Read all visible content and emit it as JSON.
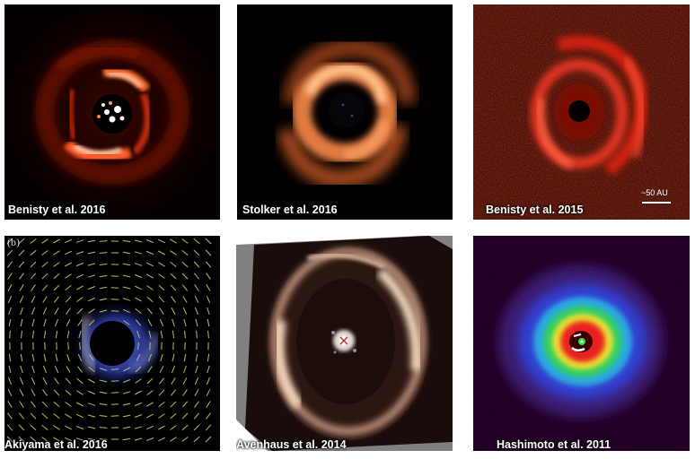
{
  "panels": [
    {
      "caption": "Benisty et al. 2016"
    },
    {
      "caption": "Stolker et al. 2016"
    },
    {
      "caption": "Benisty et al. 2015",
      "scale_bar": "~50 AU"
    },
    {
      "caption": "Akiyama et al. 2016",
      "letter": "(b)"
    },
    {
      "caption": "Avenhaus et al. 2014"
    },
    {
      "caption": "Hashimoto et al. 2011"
    }
  ]
}
